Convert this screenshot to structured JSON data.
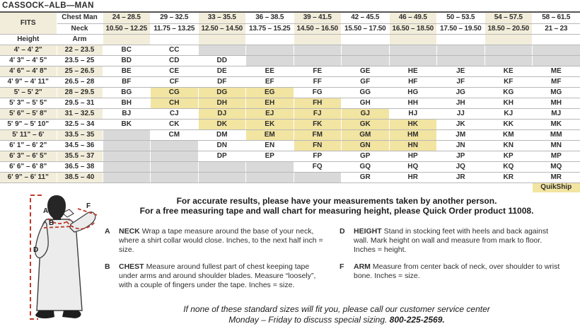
{
  "title": "CASSOCK–ALB—MAN",
  "colors": {
    "cream": "#f2edda",
    "highlight": "#f2e4a1",
    "unavailable": "#d9d9d9",
    "accent_red": "#c0392b",
    "grid_line": "#b8b8b8",
    "title_rule": "#555555"
  },
  "table": {
    "fits_label": "FITS",
    "chest_row_label": "Chest Man",
    "neck_row_label": "Neck",
    "height_col_label": "Height",
    "arm_col_label": "Arm",
    "quikship_label": "QuikShip",
    "columns": [
      {
        "chest": "24 – 28.5",
        "neck": "10.50 – 12.25"
      },
      {
        "chest": "29 – 32.5",
        "neck": "11.75 – 13.25"
      },
      {
        "chest": "33 – 35.5",
        "neck": "12.50 – 14.50"
      },
      {
        "chest": "36 – 38.5",
        "neck": "13.75 – 15.25"
      },
      {
        "chest": "39 – 41.5",
        "neck": "14.50 – 16.50"
      },
      {
        "chest": "42 – 45.5",
        "neck": "15.50 – 17.50"
      },
      {
        "chest": "46 – 49.5",
        "neck": "16.50 – 18.50"
      },
      {
        "chest": "50 – 53.5",
        "neck": "17.50 – 19.50"
      },
      {
        "chest": "54 – 57.5",
        "neck": "18.50 – 20.50"
      },
      {
        "chest": "58 – 61.5",
        "neck": "21 – 23"
      }
    ],
    "rows": [
      {
        "height": "4' – 4' 2\"",
        "arm": "22 – 23.5",
        "sizes": [
          "BC",
          "CC",
          null,
          null,
          null,
          null,
          null,
          null,
          null,
          null
        ],
        "hl": []
      },
      {
        "height": "4' 3\" – 4' 5\"",
        "arm": "23.5 – 25",
        "sizes": [
          "BD",
          "CD",
          "DD",
          null,
          null,
          null,
          null,
          null,
          null,
          null
        ],
        "hl": []
      },
      {
        "height": "4' 6\" – 4' 8\"",
        "arm": "25 – 26.5",
        "sizes": [
          "BE",
          "CE",
          "DE",
          "EE",
          "FE",
          "GE",
          "HE",
          "JE",
          "KE",
          "ME"
        ],
        "hl": []
      },
      {
        "height": "4' 9\" – 4' 11\"",
        "arm": "26.5 – 28",
        "sizes": [
          "BF",
          "CF",
          "DF",
          "EF",
          "FF",
          "GF",
          "HF",
          "JF",
          "KF",
          "MF"
        ],
        "hl": []
      },
      {
        "height": "5' – 5' 2\"",
        "arm": "28 – 29.5",
        "sizes": [
          "BG",
          "CG",
          "DG",
          "EG",
          "FG",
          "GG",
          "HG",
          "JG",
          "KG",
          "MG"
        ],
        "hl": [
          1,
          2,
          3
        ]
      },
      {
        "height": "5' 3\" – 5' 5\"",
        "arm": "29.5 – 31",
        "sizes": [
          "BH",
          "CH",
          "DH",
          "EH",
          "FH",
          "GH",
          "HH",
          "JH",
          "KH",
          "MH"
        ],
        "hl": [
          1,
          2,
          3,
          4
        ]
      },
      {
        "height": "5' 6\" – 5' 8\"",
        "arm": "31 – 32.5",
        "sizes": [
          "BJ",
          "CJ",
          "DJ",
          "EJ",
          "FJ",
          "GJ",
          "HJ",
          "JJ",
          "KJ",
          "MJ"
        ],
        "hl": [
          2,
          3,
          4,
          5
        ]
      },
      {
        "height": "5' 9\" – 5' 10\"",
        "arm": "32.5 – 34",
        "sizes": [
          "BK",
          "CK",
          "DK",
          "EK",
          "FK",
          "GK",
          "HK",
          "JK",
          "KK",
          "MK"
        ],
        "hl": [
          2,
          3,
          4,
          5,
          6
        ]
      },
      {
        "height": "5' 11\" – 6'",
        "arm": "33.5 – 35",
        "sizes": [
          null,
          "CM",
          "DM",
          "EM",
          "FM",
          "GM",
          "HM",
          "JM",
          "KM",
          "MM"
        ],
        "hl": [
          3,
          4,
          5,
          6
        ]
      },
      {
        "height": "6' 1\" – 6' 2\"",
        "arm": "34.5 – 36",
        "sizes": [
          null,
          null,
          "DN",
          "EN",
          "FN",
          "GN",
          "HN",
          "JN",
          "KN",
          "MN"
        ],
        "hl": [
          4,
          5,
          6
        ]
      },
      {
        "height": "6' 3\" – 6' 5\"",
        "arm": "35.5 – 37",
        "sizes": [
          null,
          null,
          "DP",
          "EP",
          "FP",
          "GP",
          "HP",
          "JP",
          "KP",
          "MP"
        ],
        "hl": []
      },
      {
        "height": "6' 6\" – 6' 8\"",
        "arm": "36.5 – 38",
        "sizes": [
          null,
          null,
          null,
          null,
          "FQ",
          "GQ",
          "HQ",
          "JQ",
          "KQ",
          "MQ"
        ],
        "hl": []
      },
      {
        "height": "6' 9\" – 6' 11\"",
        "arm": "38.5 – 40",
        "sizes": [
          null,
          null,
          null,
          null,
          null,
          "GR",
          "HR",
          "JR",
          "KR",
          "MR"
        ],
        "hl": []
      }
    ]
  },
  "figure": {
    "labels": {
      "neck": "A",
      "chest": "B",
      "height": "D",
      "arm": "F"
    }
  },
  "notes": {
    "intro_line1": "For accurate results, please have your measurements taken by another person.",
    "intro_line2": "For a free measuring tape and wall chart for measuring height, please Quick Order product 11008.",
    "instructions": [
      {
        "key": "A",
        "term": "NECK",
        "text": "Wrap a tape measure around the base of your neck, where a shirt collar would close. Inches, to the next half inch = size."
      },
      {
        "key": "B",
        "term": "CHEST",
        "text": "Measure around fullest part of chest keeping tape under arms and around shoulder blades. Measure “loosely”, with a couple of fingers under the tape. Inches = size."
      },
      {
        "key": "D",
        "term": "HEIGHT",
        "text": "Stand in stocking feet with heels and back against wall. Mark height on wall and measure from mark to floor. Inches = height."
      },
      {
        "key": "F",
        "term": "ARM",
        "text": "Measure from center back of neck, over shoulder to wrist bone. Inches = size."
      }
    ],
    "footer_line1": "If none of these standard sizes will fit you, please call our customer service center",
    "footer_line2_prefix": "Monday – Friday to discuss special sizing. ",
    "footer_phone": "800-225-2569."
  }
}
